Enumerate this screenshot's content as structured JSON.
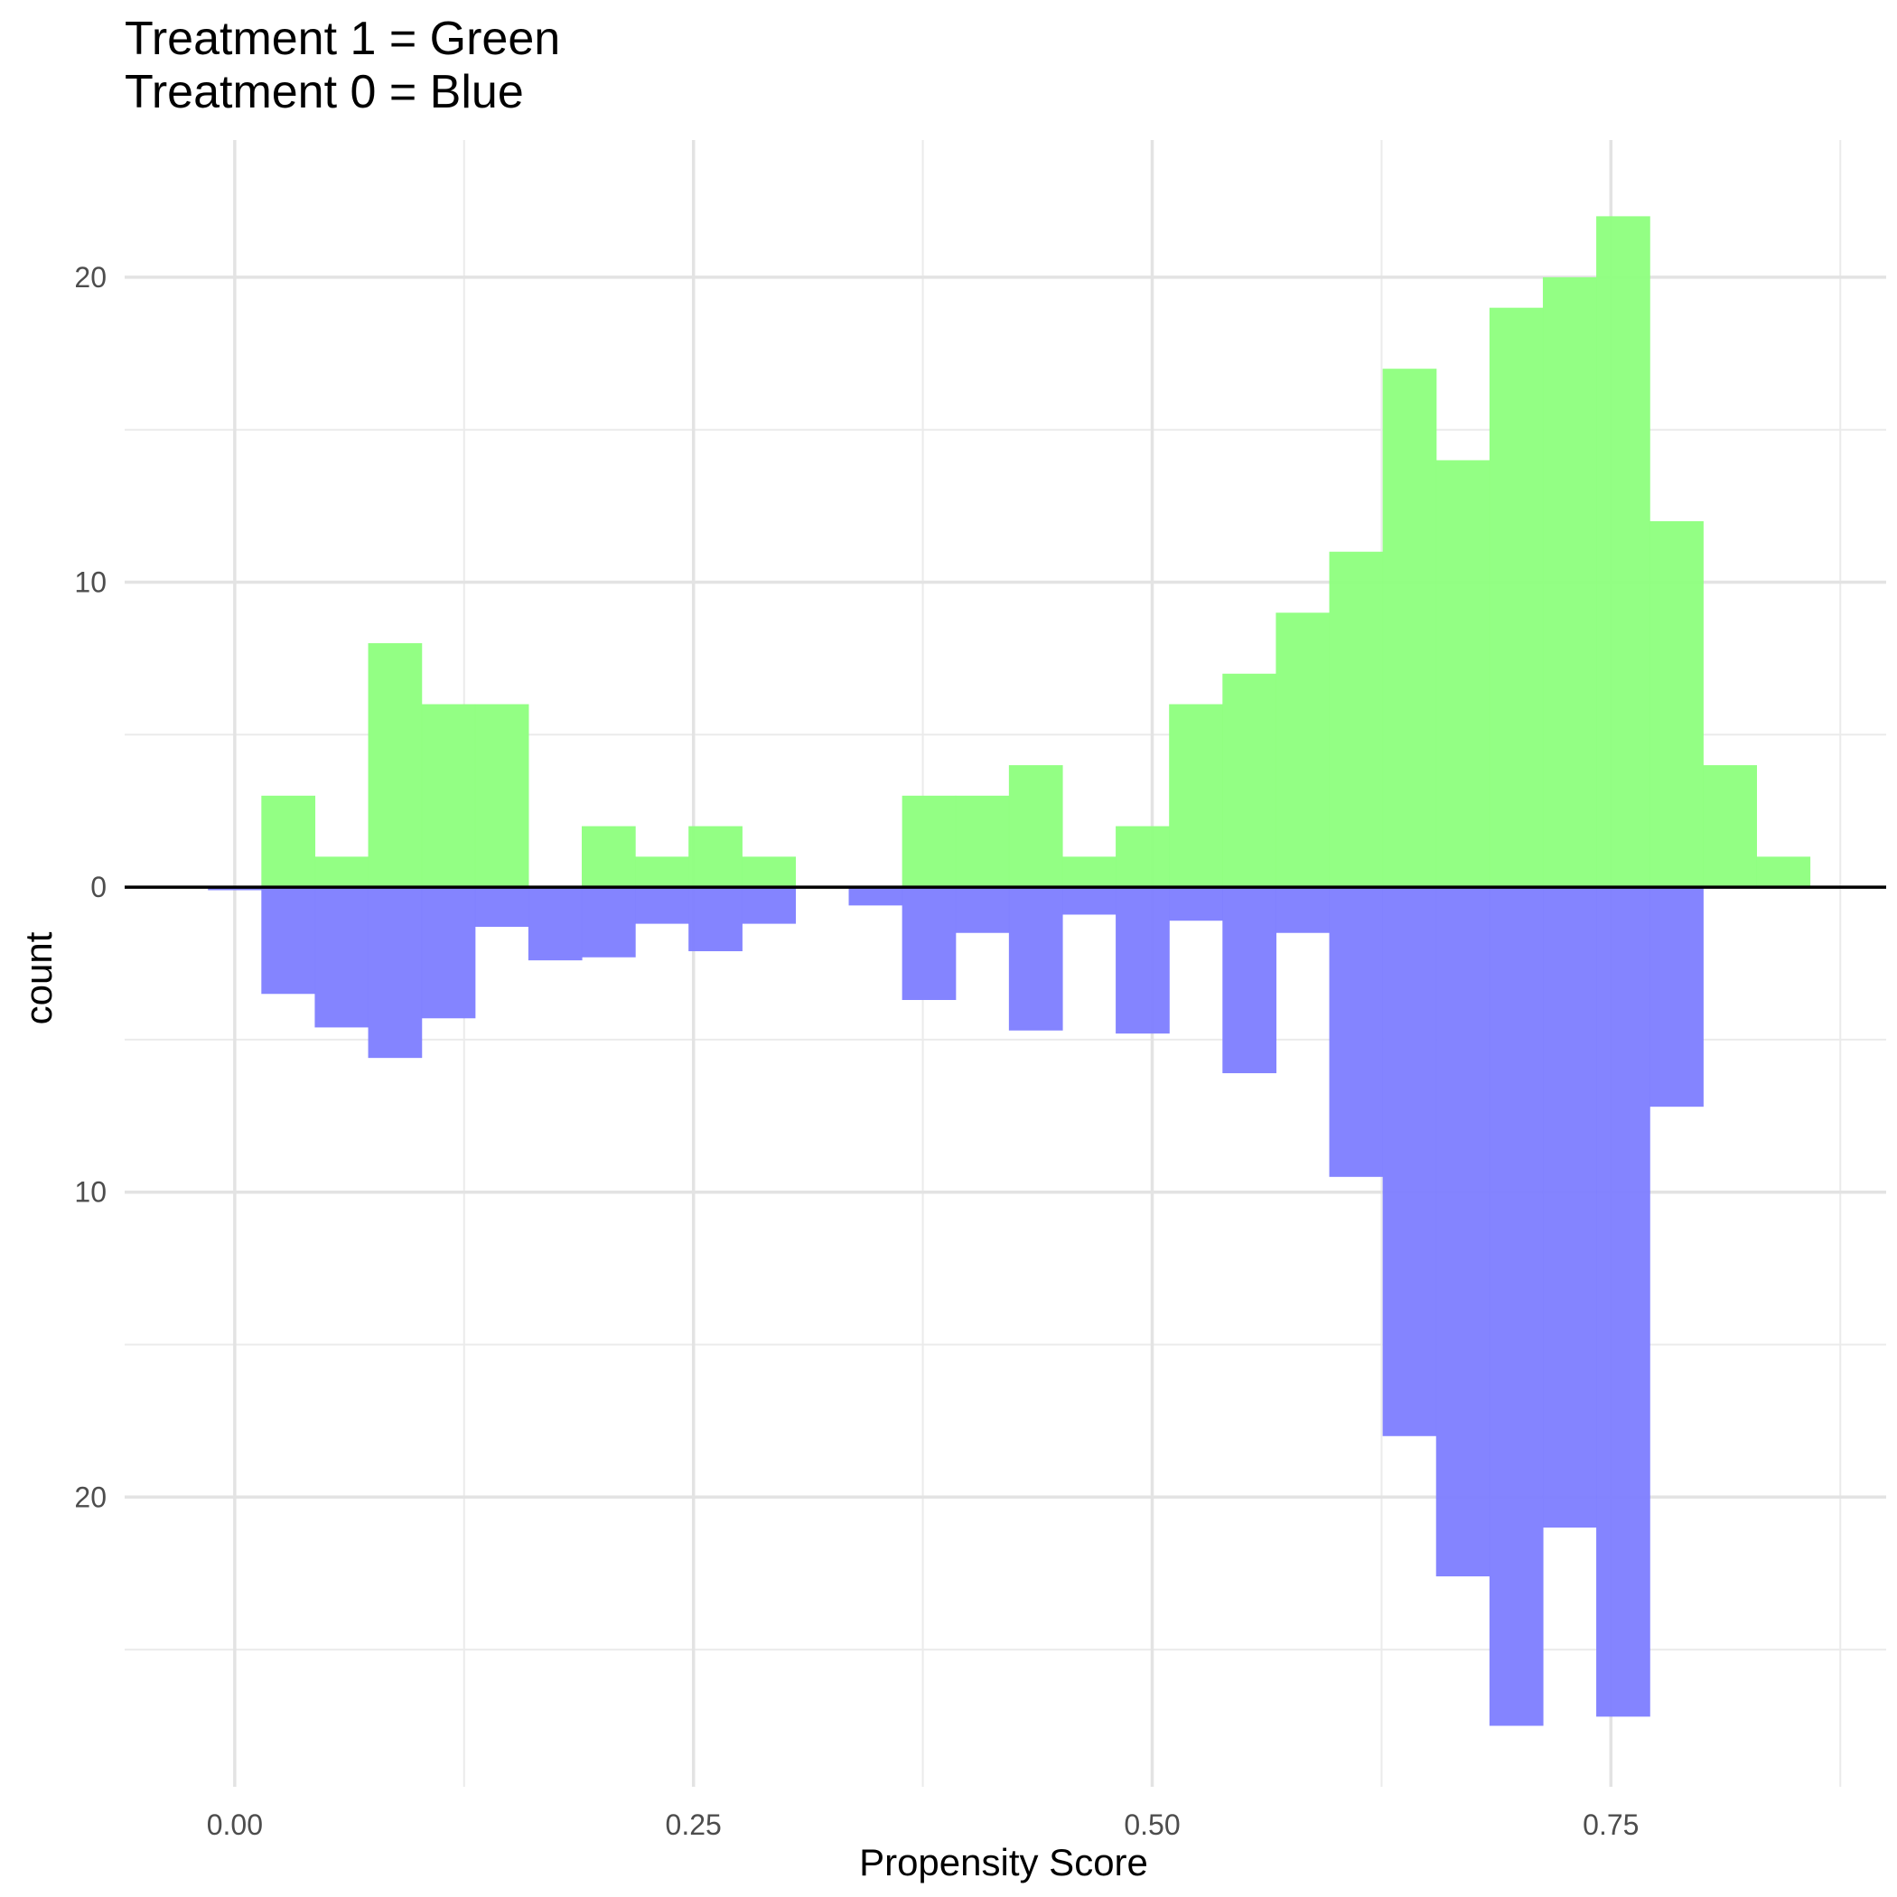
{
  "chart_data": {
    "type": "bar",
    "title": [
      "Treatment 1 = Green",
      "Treatment 0 = Blue"
    ],
    "xlabel": "Propensity Score",
    "ylabel": "count",
    "xlim": [
      -0.06,
      0.9
    ],
    "ylim": [
      -29.5,
      24.5
    ],
    "x_ticks": [
      {
        "value": 0.0,
        "label": "0.00"
      },
      {
        "value": 0.25,
        "label": "0.25"
      },
      {
        "value": 0.5,
        "label": "0.50"
      },
      {
        "value": 0.75,
        "label": "0.75"
      }
    ],
    "x_minor_gridlines": [
      0.125,
      0.375,
      0.625,
      0.875
    ],
    "y_ticks": [
      {
        "value": 20,
        "label": "20"
      },
      {
        "value": 10,
        "label": "10"
      },
      {
        "value": 0,
        "label": "0"
      },
      {
        "value": -10,
        "label": "10"
      },
      {
        "value": -20,
        "label": "20"
      }
    ],
    "y_minor_gridlines": [
      15,
      5,
      -5,
      -15,
      -25
    ],
    "grid": true,
    "zero_line": true,
    "legend": "none",
    "bin_width": 0.0291,
    "bin_start": -0.0146,
    "series": [
      {
        "color": "#90ff80",
        "direction": "up",
        "values": [
          0,
          3,
          1,
          8,
          6,
          6,
          0,
          2,
          1,
          2,
          1,
          0,
          0,
          3,
          3,
          4,
          1,
          2,
          6,
          7,
          9,
          11,
          17,
          14,
          19,
          20,
          22,
          12,
          4,
          1
        ]
      },
      {
        "color": "#8080ff",
        "direction": "down",
        "values": [
          0.1,
          3.5,
          4.6,
          5.6,
          4.3,
          1.3,
          2.4,
          2.3,
          1.2,
          2.1,
          1.2,
          0,
          0.6,
          3.7,
          1.5,
          4.7,
          0.9,
          4.8,
          1.1,
          6.1,
          1.5,
          9.5,
          18,
          22.6,
          27.5,
          21,
          27.2,
          7.2,
          0,
          0
        ]
      }
    ]
  }
}
